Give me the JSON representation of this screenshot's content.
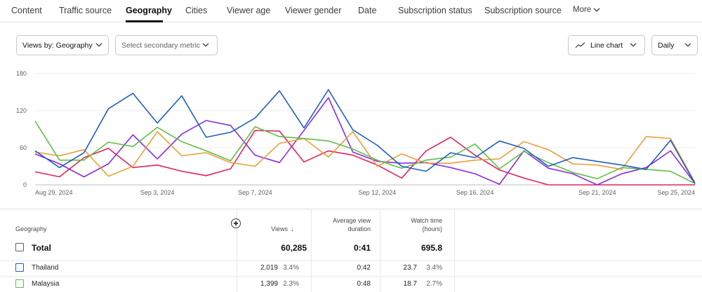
{
  "tabs": [
    {
      "label": "Content",
      "active": false
    },
    {
      "label": "Traffic source",
      "active": false
    },
    {
      "label": "Geography",
      "active": true
    },
    {
      "label": "Cities",
      "active": false
    },
    {
      "label": "Viewer age",
      "active": false
    },
    {
      "label": "Viewer gender",
      "active": false
    },
    {
      "label": "Date",
      "active": false
    },
    {
      "label": "Subscription status",
      "active": false
    },
    {
      "label": "Subscription source",
      "active": false
    },
    {
      "label": "More",
      "active": false
    }
  ],
  "controls": {
    "views_by": "Views by: Geography",
    "secondary_metric_placeholder": "Select secondary metric",
    "chart_type": "Line chart",
    "interval": "Daily"
  },
  "chart_data": {
    "type": "line",
    "y_ticks": [
      "180",
      "120",
      "60",
      "0"
    ],
    "ylim": [
      0,
      180
    ],
    "x_tick_labels": [
      {
        "label": "Aug 29, 2024",
        "day": 0
      },
      {
        "label": "Sep 3, 2024",
        "day": 5
      },
      {
        "label": "Sep 7, 2024",
        "day": 9
      },
      {
        "label": "Sep 12, 2024",
        "day": 14
      },
      {
        "label": "Sep 16, 2024",
        "day": 18
      },
      {
        "label": "Sep 21, 2024",
        "day": 23
      },
      {
        "label": "Sep 25, 2024",
        "day": 27
      }
    ],
    "grid": "horizontal",
    "series": [
      {
        "color": "#1f5fbf",
        "values": [
          55,
          28,
          52,
          123,
          148,
          100,
          144,
          77,
          85,
          108,
          152,
          92,
          154,
          89,
          64,
          30,
          22,
          52,
          44,
          71,
          59,
          30,
          44,
          38,
          32,
          25,
          72,
          2
        ]
      },
      {
        "color": "#5fbe46",
        "values": [
          103,
          40,
          40,
          69,
          62,
          93,
          70,
          55,
          39,
          94,
          78,
          75,
          71,
          58,
          40,
          27,
          40,
          45,
          66,
          26,
          54,
          36,
          20,
          10,
          28,
          25,
          22,
          2
        ]
      },
      {
        "color": "#e8a13a",
        "values": [
          53,
          47,
          57,
          14,
          30,
          86,
          47,
          52,
          36,
          30,
          67,
          75,
          45,
          86,
          30,
          50,
          35,
          35,
          40,
          42,
          70,
          57,
          34,
          32,
          25,
          78,
          75,
          4
        ]
      },
      {
        "color": "#8a2be2",
        "values": [
          50,
          34,
          13,
          34,
          81,
          42,
          82,
          104,
          96,
          48,
          36,
          88,
          141,
          53,
          38,
          35,
          36,
          28,
          18,
          1,
          55,
          27,
          18,
          0,
          18,
          28,
          55,
          2
        ]
      },
      {
        "color": "#e0245e",
        "values": [
          21,
          13,
          44,
          59,
          28,
          32,
          22,
          15,
          26,
          88,
          87,
          37,
          55,
          48,
          32,
          11,
          55,
          77,
          48,
          24,
          11,
          0,
          0,
          0,
          0,
          0,
          0,
          0
        ]
      }
    ]
  },
  "table": {
    "headers": {
      "geography": "Geography",
      "views": "Views",
      "views_sort": "↓",
      "avg_view_duration_1": "Average view",
      "avg_view_duration_2": "duration",
      "watch_time_1": "Watch time",
      "watch_time_2": "(hours)"
    },
    "total": {
      "label": "Total",
      "views": "60,285",
      "avg_duration": "0:41",
      "watch_time": "695.8"
    },
    "rows": [
      {
        "country": "Thailand",
        "color": "#1f5fbf",
        "views": "2,019",
        "views_pct": "3.4%",
        "avg_duration": "0:42",
        "watch_time": "23.7",
        "watch_pct": "3.4%"
      },
      {
        "country": "Malaysia",
        "color": "#5fbe46",
        "views": "1,399",
        "views_pct": "2.3%",
        "avg_duration": "0:48",
        "watch_time": "18.7",
        "watch_pct": "2.7%"
      }
    ]
  }
}
